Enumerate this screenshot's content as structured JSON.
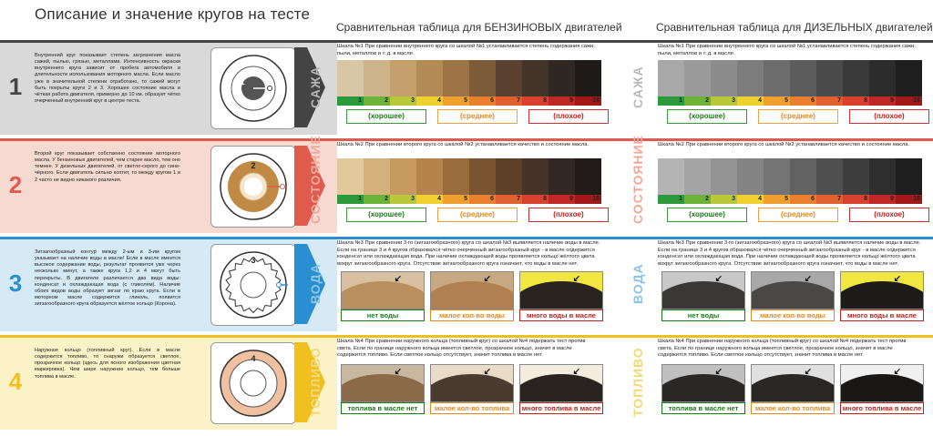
{
  "header": {
    "title": "Описание и значение кругов на тесте",
    "gasoline_title": "Сравнительная таблица для  БЕНЗИНОВЫХ  двигателей",
    "diesel_title": "Сравнительная таблица для  ДИЗЕЛЬНЫХ  двигателей"
  },
  "rows": [
    {
      "number": "1",
      "color": "#444444",
      "bg": "#d9d9d9",
      "description": "Внутренний круг показывает степень загрязнения масла сажей, пылью, грязью, металлами. Интенсивность окраски внутреннего круга зависит от пробега автомобиля и длительности использования моторного масла. Если масло уже в значительной степени отработано, то сажей могут быть покрыты круги 2 и 3. Хорошее состояние масла и чёткая работа двигателя, примерно до 10 км. образует чётко очерченный внутренний круг в центре теста.",
      "circle_label": "1",
      "vlabel": "САЖА",
      "vlabel_color": "#b8b8b8",
      "gas_text": "Шкала №1 При сравнении внутреннего круга со шкалой №1 устанавливается степень содержания сажи, пыли, металлов и т. д. в масле.",
      "diesel_text": "Шкала №1 При сравнении внутреннего круга со шкалой №1 устанавливается степень содержания сажи, пыли, металлов и т. д. в масле.",
      "ticks": [
        "1",
        "2",
        "3",
        "4",
        "5",
        "6",
        "7",
        "8",
        "9",
        "10"
      ],
      "good": "(хорошее)",
      "mid": "(среднее)",
      "bad": "(плохое)"
    },
    {
      "number": "2",
      "color": "#e05a4e",
      "bg": "#f6d9d0",
      "description": "Второй круг показывает собственно состояние моторного масла. У бензиновых двигателей, чем старее масло, тем оно темнее. У дизельных двигателей, от светло-серого до сине-чёрного. Если двигатель сильно коптит, то между кругом 1 и 2 часто не видно никакого различия.",
      "circle_label": "2",
      "vlabel": "СОСТОЯНИЕ",
      "vlabel_color": "#f0a898",
      "gas_text": "Шкала №2 При сравнении второго круга со шкалой №2 устанавливается качество и состояние масла.",
      "diesel_text": "Шкала №2 При сравнении второго круга со шкалой №2 устанавливается качество и состояние масла.",
      "ticks": [
        "1",
        "2",
        "3",
        "4",
        "5",
        "6",
        "7",
        "8",
        "9",
        "10"
      ],
      "good": "(хорошее)",
      "mid": "(среднее)",
      "bad": "(плохое)"
    },
    {
      "number": "3",
      "color": "#2a8fd0",
      "bg": "#d6eaf6",
      "description": "Зигзагообразный контур между 2-ым и 3-им кругом указывает на наличие воды в масле! Если в масле имеется высокое содержание воды, результат проявится уже через несколько минут, а также круги 1,2 и 4 могут быть перекрыты. В двигателе различается два вида воды: конденсат и охлаждающая вода (с гликолем). Наличие обоих видов воды образует зигзаг по краю круга. Если в моторном масле содержится гликоль, появится зигзагообразного круга образуется жёлтое кольцо (Корона).",
      "circle_label": "3",
      "vlabel": "ВОДА",
      "vlabel_color": "#8cc4e8",
      "gas_text": "Шкала №3 При сравнении 3-го (зигзагообразного) круга со шкалой №3 выявляется наличие воды в масле. Если на границе 3 и 4 кругов образовался чётко очерченный зигзагообразный круг - в масле содержится конденсат или охлаждающая вода. При наличии охлаждающей воды проявляется кольцо жёлтого цвета вокруг зигзагообразного круга. Отсутствие зигзагообразного круга означает, что воды в масле нет.",
      "diesel_text": "Шкала №3 При сравнении 3-го (зигзагообразного) круга со шкалой №3 выявляется наличие воды в масле. Если на границе 3 и 4 кругов образовался чётко очерченный зигзагообразный круг - в масле содержится конденсат или охлаждающая вода. При наличии охлаждающей воды проявляется кольцо жёлтого цвета вокруг зигзагообразного круга. Отсутствие зигзагообразного круга означает, что воды в масле нет.",
      "good": "нет воды",
      "mid": "малое кол-во воды",
      "bad": "много воды в масле"
    },
    {
      "number": "4",
      "color": "#f0c020",
      "bg": "#fbf2c8",
      "description": "Наружное кольцо (топливный круг). Если в масле содержится топливо, то снаружи образуется светлое, прозрачное кольцо (здесь для ясного изображения цветная маркировка). Чем шире наружное кольцо, тем больше топлива в масле.",
      "circle_label": "4",
      "vlabel": "ТОПЛИВО",
      "vlabel_color": "#f2d878",
      "gas_text": "Шкала №4 При сравнении наружного кольца (топливный круг) со шкалой №4 подержать тест против света. Если по границе наружного кольца имеется светлое, прозрачное кольцо, значит в масле содержится топливо. Если светлое кольцо отсутствует, значит топлива в масле нет.",
      "diesel_text": "Шкала №4 При сравнении наружного кольца (топливный круг) со шкалой №4 подержать тест против света. Если по границе наружного кольца имеется светлое, прозрачное кольцо, значит в масле содержится топливо. Если светлое кольцо отсутствует, значит топлива в масле нет.",
      "good": "топлива в масле нет",
      "mid": "малое кол-во топлива",
      "bad": "много топлива в масле"
    }
  ],
  "colors": {
    "gas_scale": [
      "#d8c7a5",
      "#cdb48a",
      "#c3a06c",
      "#b48a55",
      "#9c7446",
      "#7d5a38",
      "#5a4030",
      "#423428",
      "#2f2722",
      "#1f1b18"
    ],
    "diesel_scale": [
      "#a8a8a8",
      "#9a9a9a",
      "#8c8c8c",
      "#7c7c7c",
      "#6c6c6c",
      "#5c5c5c",
      "#4a4a4a",
      "#3a3a3a",
      "#2c2c2c",
      "#1e1e1e"
    ],
    "gas_scale2": [
      "#e2c99c",
      "#d4b07a",
      "#c69a60",
      "#b5844c",
      "#9a6c3c",
      "#7a5430",
      "#5c4028",
      "#463226",
      "#322722",
      "#211c19"
    ],
    "diesel_scale2": [
      "#b4b4b4",
      "#a4a4a4",
      "#949494",
      "#848484",
      "#747474",
      "#626262",
      "#505050",
      "#3e3e3e",
      "#2e2e2e",
      "#1e1e1e"
    ],
    "gradient": [
      "#2c9a3a",
      "#6db33a",
      "#b8c83a",
      "#f0d030",
      "#f0a030",
      "#e88030",
      "#e06030",
      "#d84030",
      "#c02828",
      "#a01818"
    ]
  }
}
